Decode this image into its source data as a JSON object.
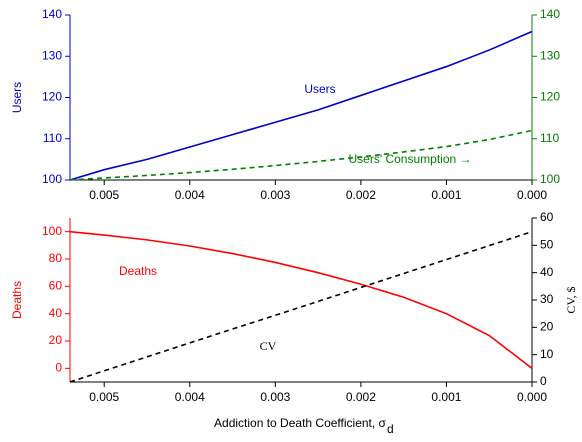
{
  "chart_data": [
    {
      "type": "line",
      "ylabel": "Users",
      "x": [
        0.0054,
        0.005,
        0.0045,
        0.004,
        0.0035,
        0.003,
        0.0025,
        0.002,
        0.0015,
        0.001,
        0.0005,
        0
      ],
      "xlim": [
        0.0054,
        0
      ],
      "xticks": [
        0.005,
        0.004,
        0.003,
        0.002,
        0.001,
        {
          "value": 0,
          "label": "0.000"
        }
      ],
      "ylim": [
        100,
        140
      ],
      "yticks": [
        100,
        110,
        120,
        130,
        140
      ],
      "ycolor": "#0000cc",
      "y2lim": [
        100,
        140
      ],
      "y2ticks": [
        100,
        110,
        120,
        130,
        140
      ],
      "y2color": "#008000",
      "series": [
        {
          "name": "Users",
          "color": "#0000cc",
          "dash": false,
          "values": [
            100,
            102.5,
            105,
            108,
            111,
            114,
            117,
            120.5,
            124,
            127.5,
            131.5,
            136
          ]
        },
        {
          "name": "Users' Consumption →",
          "color": "#008000",
          "dash": true,
          "axis": "y2",
          "values": [
            100,
            100.5,
            101.1,
            101.8,
            102.6,
            103.5,
            104.5,
            105.6,
            106.8,
            108.1,
            109.8,
            112
          ]
        }
      ]
    },
    {
      "type": "line",
      "ylabel": "Deaths",
      "y2label": "CV, $",
      "xlabel": "Addiction to Death Coefficient, σ",
      "xlabel_sub": "d",
      "x": [
        0.0054,
        0.005,
        0.0045,
        0.004,
        0.0035,
        0.003,
        0.0025,
        0.002,
        0.0015,
        0.001,
        0.0005,
        0
      ],
      "xlim": [
        0.0054,
        0
      ],
      "xticks": [
        0.005,
        0.004,
        0.003,
        0.002,
        0.001,
        {
          "value": 0,
          "label": "0.000"
        }
      ],
      "ylim": [
        -10,
        110
      ],
      "yticks": [
        0,
        20,
        40,
        60,
        80,
        100
      ],
      "ycolor": "#ff0000",
      "y2lim": [
        0,
        60
      ],
      "y2ticks": [
        0,
        10,
        20,
        30,
        40,
        50,
        60
      ],
      "y2color": "#000000",
      "series": [
        {
          "name": "Deaths",
          "color": "#ff0000",
          "dash": false,
          "values": [
            100,
            97.5,
            94,
            89.5,
            84,
            77.5,
            70,
            61.5,
            52,
            40,
            24,
            0
          ]
        },
        {
          "name": "CV",
          "color": "#000000",
          "dash": true,
          "axis": "y2",
          "values": [
            0,
            4.1,
            9.2,
            14.3,
            19.4,
            24.4,
            29.5,
            34.6,
            39.7,
            44.8,
            49.9,
            55
          ]
        }
      ]
    }
  ]
}
